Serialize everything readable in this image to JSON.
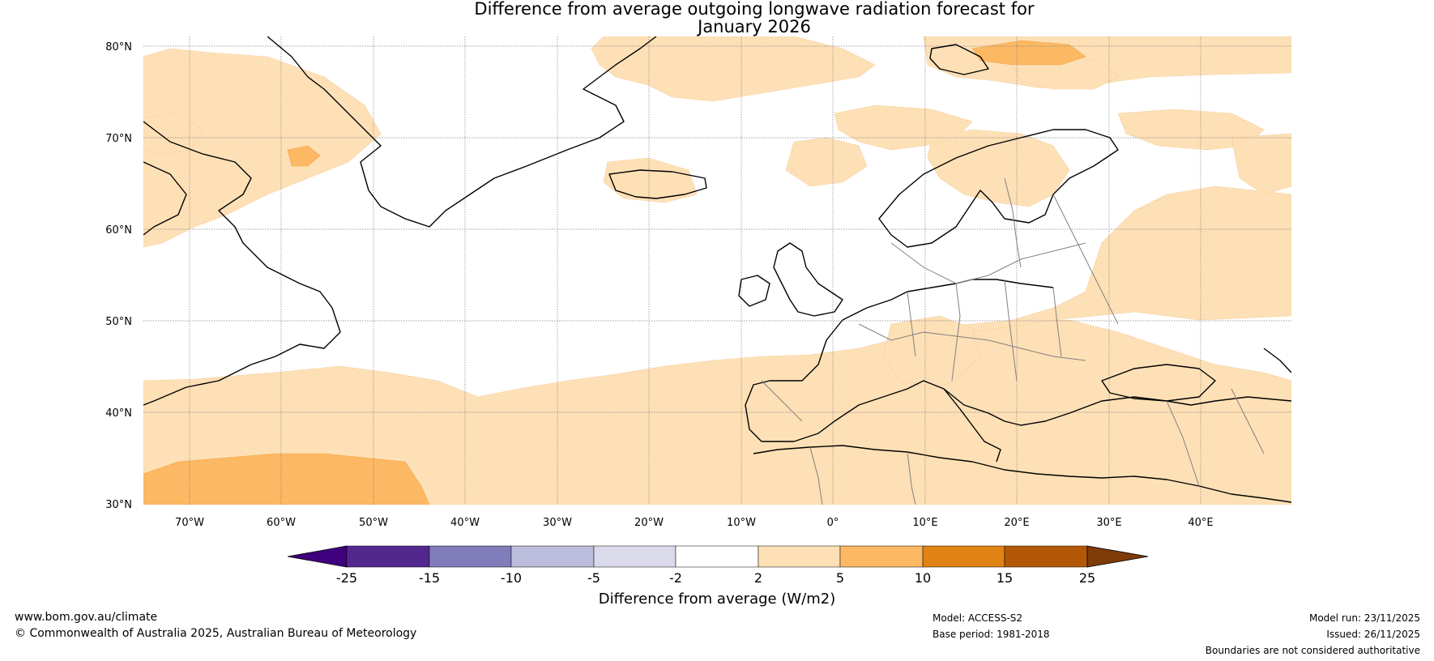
{
  "title": {
    "line1": "Difference from average outgoing longwave radiation forecast for",
    "line2": "January 2026"
  },
  "map": {
    "lat_labels": [
      "80°N",
      "70°N",
      "60°N",
      "50°N",
      "40°N",
      "30°N"
    ],
    "lon_labels": [
      "70°W",
      "60°W",
      "50°W",
      "40°W",
      "30°W",
      "20°W",
      "10°W",
      "0°",
      "10°E",
      "20°E",
      "30°E",
      "40°E"
    ],
    "ocean_color": "#ffffff",
    "land_coast_color": "#000000",
    "border_color": "#808080",
    "grid_color": "#808080"
  },
  "colorbar": {
    "ticks": [
      "-25",
      "-15",
      "-10",
      "-5",
      "-2",
      "2",
      "5",
      "10",
      "15",
      "25"
    ],
    "colors": [
      "#3f007d",
      "#54278f",
      "#807dba",
      "#bcbddc",
      "#dadaeb",
      "#ffffff",
      "#fee0b6",
      "#fdb863",
      "#e08214",
      "#b35806",
      "#7f3b08"
    ],
    "title": "Difference from average (W/m2)"
  },
  "footer": {
    "website": "www.bom.gov.au/climate",
    "copyright": "© Commonwealth of Australia 2025, Australian Bureau of Meteorology",
    "model": "Model: ACCESS-S2",
    "base_period": "Base period: 1981-2018",
    "model_run": "Model run: 23/11/2025",
    "issued": "Issued: 26/11/2025",
    "disclaimer": "Boundaries are not considered authoritative"
  }
}
